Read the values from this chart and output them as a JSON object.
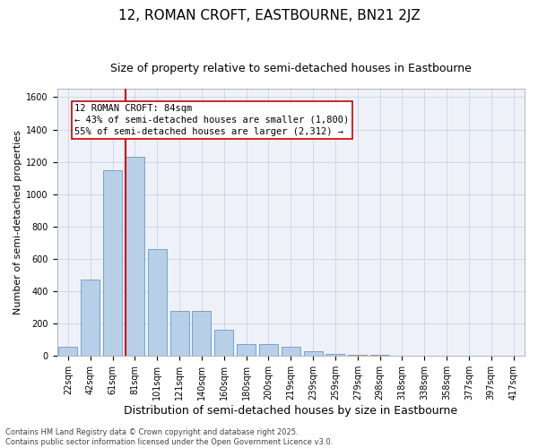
{
  "title": "12, ROMAN CROFT, EASTBOURNE, BN21 2JZ",
  "subtitle": "Size of property relative to semi-detached houses in Eastbourne",
  "xlabel": "Distribution of semi-detached houses by size in Eastbourne",
  "ylabel": "Number of semi-detached properties",
  "categories": [
    "22sqm",
    "42sqm",
    "61sqm",
    "81sqm",
    "101sqm",
    "121sqm",
    "140sqm",
    "160sqm",
    "180sqm",
    "200sqm",
    "219sqm",
    "239sqm",
    "259sqm",
    "279sqm",
    "298sqm",
    "318sqm",
    "338sqm",
    "358sqm",
    "377sqm",
    "397sqm",
    "417sqm"
  ],
  "values": [
    60,
    470,
    1150,
    1230,
    660,
    280,
    280,
    160,
    75,
    75,
    55,
    30,
    15,
    10,
    5,
    3,
    2,
    1,
    1,
    1,
    1
  ],
  "bar_color": "#b8cfe8",
  "bar_edge_color": "#6699cc",
  "vline_color": "#cc0000",
  "annotation_box_color": "#cc0000",
  "annotation_line1": "12 ROMAN CROFT: 84sqm",
  "annotation_line2": "← 43% of semi-detached houses are smaller (1,800)",
  "annotation_line3": "55% of semi-detached houses are larger (2,312) →",
  "ylim": [
    0,
    1650
  ],
  "yticks": [
    0,
    200,
    400,
    600,
    800,
    1000,
    1200,
    1400,
    1600
  ],
  "footer_text": "Contains HM Land Registry data © Crown copyright and database right 2025.\nContains public sector information licensed under the Open Government Licence v3.0.",
  "background_color": "#eef2f8",
  "grid_color": "#c8d4e4",
  "title_fontsize": 11,
  "subtitle_fontsize": 9,
  "xlabel_fontsize": 9,
  "ylabel_fontsize": 8,
  "tick_fontsize": 7,
  "annotation_fontsize": 7.5,
  "footer_fontsize": 6
}
